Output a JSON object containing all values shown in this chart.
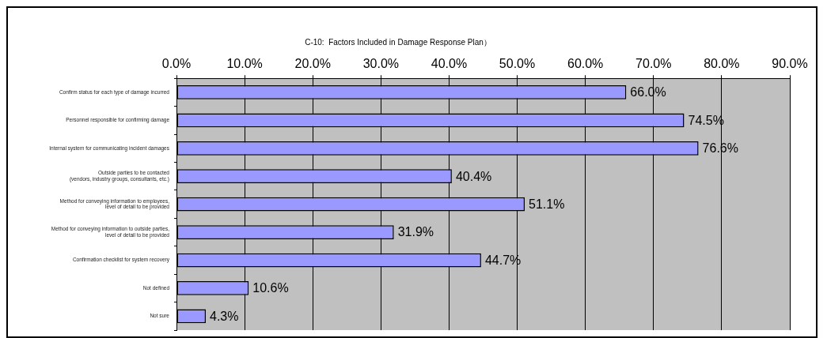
{
  "chart_data": {
    "type": "bar",
    "orientation": "horizontal",
    "title": "C-10:  Factors Included in Damage Response Plan）",
    "categories": [
      "Confirm status for each type of damage incurred",
      "Personnel responsible for confirming damage",
      "Internal system for communicating incident damages",
      "Outside parties to be contacted\n(vendors, industry groups, consultants, etc.)",
      "Method for conveying information to employees,\nlevel of detail to be provided",
      "Method for conveying information to outside parties,\nlevel of detail to be provided",
      "Confirmation checklist for system recovery",
      "Not defined",
      "Not sure"
    ],
    "values": [
      66.0,
      74.5,
      76.6,
      40.4,
      51.1,
      31.9,
      44.7,
      10.6,
      4.3
    ],
    "value_labels": [
      "66.0%",
      "74.5%",
      "76.6%",
      "40.4%",
      "51.1%",
      "31.9%",
      "44.7%",
      "10.6%",
      "4.3%"
    ],
    "color": "#9999ff",
    "xlim": [
      0,
      90
    ],
    "xticks": [
      {
        "value": 0,
        "label": "0.0%"
      },
      {
        "value": 10,
        "label": "10.0%"
      },
      {
        "value": 20,
        "label": "20.0%"
      },
      {
        "value": 30,
        "label": "30.0%"
      },
      {
        "value": 40,
        "label": "40.0%"
      },
      {
        "value": 50,
        "label": "50.0%"
      },
      {
        "value": 60,
        "label": "60.0%"
      },
      {
        "value": 70,
        "label": "70.0%"
      },
      {
        "value": 80,
        "label": "80.0%"
      },
      {
        "value": 90,
        "label": "90.0%"
      }
    ],
    "grid": "x"
  }
}
